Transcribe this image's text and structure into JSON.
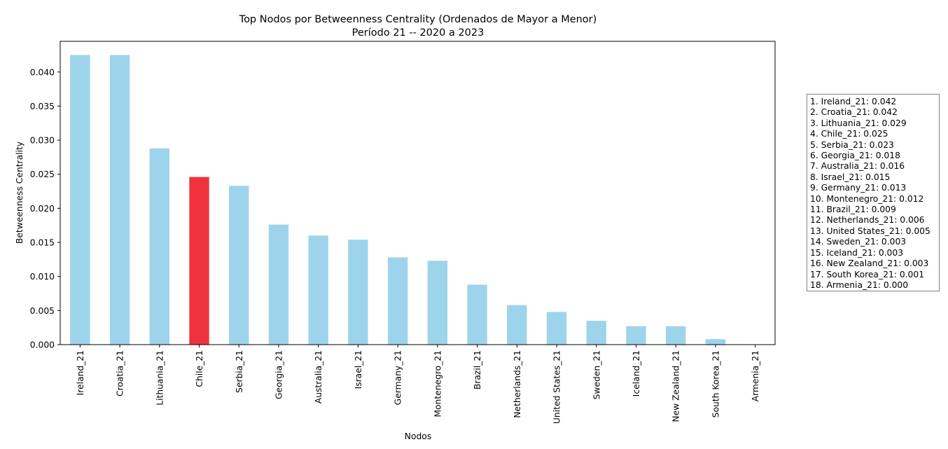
{
  "chart_data": {
    "type": "bar",
    "title": "Top Nodos por Betweenness Centrality (Ordenados de Mayor a Menor)",
    "subtitle": "Período 21 -- 2020 a 2023",
    "xlabel": "Nodos",
    "ylabel": "Betweenness Centrality",
    "ylim": [
      0,
      0.0445
    ],
    "yticks": [
      "0.000",
      "0.005",
      "0.010",
      "0.015",
      "0.020",
      "0.025",
      "0.030",
      "0.035",
      "0.040"
    ],
    "categories": [
      "Ireland_21",
      "Croatia_21",
      "Lithuania_21",
      "Chile_21",
      "Serbia_21",
      "Georgia_21",
      "Australia_21",
      "Israel_21",
      "Germany_21",
      "Montenegro_21",
      "Brazil_21",
      "Netherlands_21",
      "United States_21",
      "Sweden_21",
      "Iceland_21",
      "New Zealand_21",
      "South Korea_21",
      "Armenia_21"
    ],
    "values": [
      0.0425,
      0.0425,
      0.0288,
      0.0246,
      0.0233,
      0.0176,
      0.016,
      0.0154,
      0.0128,
      0.0123,
      0.0088,
      0.0058,
      0.0048,
      0.0035,
      0.0027,
      0.0027,
      0.0008,
      0.0
    ],
    "highlight_index": 3,
    "bar_color": "#9dd4eb",
    "highlight_color": "#ee333f",
    "legend_placement": "right",
    "legend": [
      "1. Ireland_21: 0.042",
      "2. Croatia_21: 0.042",
      "3. Lithuania_21: 0.029",
      "4. Chile_21: 0.025",
      "5. Serbia_21: 0.023",
      "6. Georgia_21: 0.018",
      "7. Australia_21: 0.016",
      "8. Israel_21: 0.015",
      "9. Germany_21: 0.013",
      "10. Montenegro_21: 0.012",
      "11. Brazil_21: 0.009",
      "12. Netherlands_21: 0.006",
      "13. United States_21: 0.005",
      "14. Sweden_21: 0.003",
      "15. Iceland_21: 0.003",
      "16. New Zealand_21: 0.003",
      "17. South Korea_21: 0.001",
      "18. Armenia_21: 0.000"
    ]
  }
}
